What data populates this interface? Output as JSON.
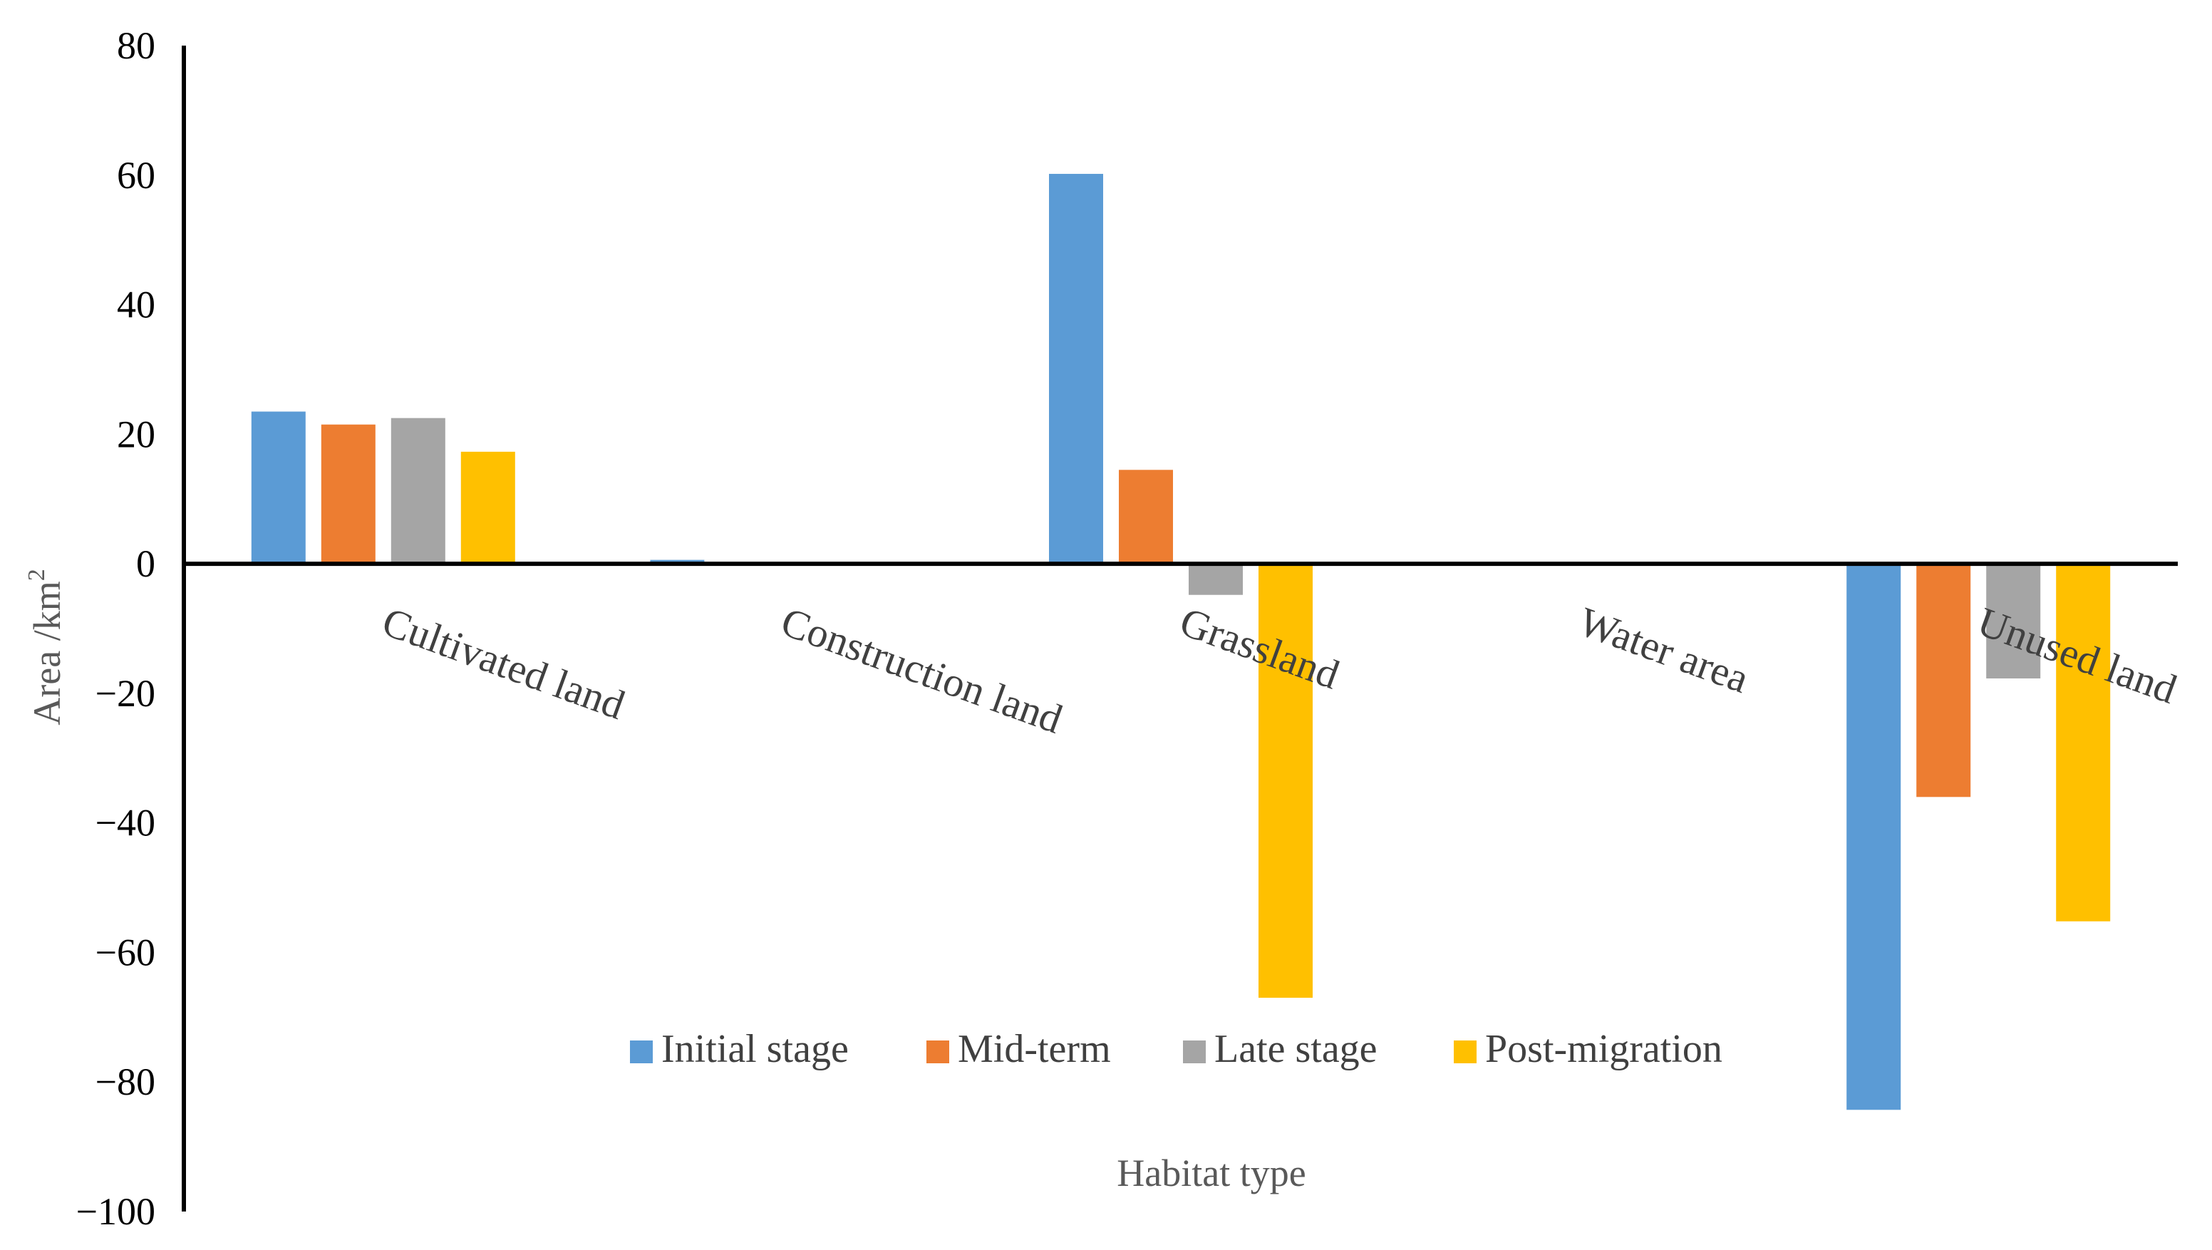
{
  "chart_data": {
    "type": "bar",
    "title": "",
    "xlabel": "Habitat type",
    "ylabel_main": "Area /km",
    "ylabel_sup": "2",
    "ylim": [
      -100,
      80
    ],
    "yticks": [
      {
        "value": 80,
        "label": "80"
      },
      {
        "value": 60,
        "label": "60"
      },
      {
        "value": 40,
        "label": "40"
      },
      {
        "value": 20,
        "label": "20"
      },
      {
        "value": 0,
        "label": "0"
      },
      {
        "value": -20,
        "label": "−20"
      },
      {
        "value": -40,
        "label": "−40"
      },
      {
        "value": -60,
        "label": "−60"
      },
      {
        "value": -80,
        "label": "−80"
      },
      {
        "value": -100,
        "label": "−100"
      }
    ],
    "grid": false,
    "legend_position": "bottom-center",
    "categories": [
      "Cultivated land",
      "Construction land",
      "Grassland",
      "Water area",
      "Unused land"
    ],
    "series": [
      {
        "name": "Initial stage",
        "color": "#5B9BD5",
        "values": [
          23.5,
          0.6,
          60.2,
          0.0,
          -84.3
        ]
      },
      {
        "name": "Mid-term",
        "color": "#ED7D31",
        "values": [
          21.5,
          0.0,
          14.5,
          0.0,
          -36.0
        ]
      },
      {
        "name": "Late stage",
        "color": "#A5A5A5",
        "values": [
          22.5,
          0.0,
          -4.8,
          0.0,
          -17.7
        ]
      },
      {
        "name": "Post-migration",
        "color": "#FFC000",
        "values": [
          17.3,
          0.0,
          -67.0,
          0.0,
          -55.2
        ]
      }
    ]
  }
}
